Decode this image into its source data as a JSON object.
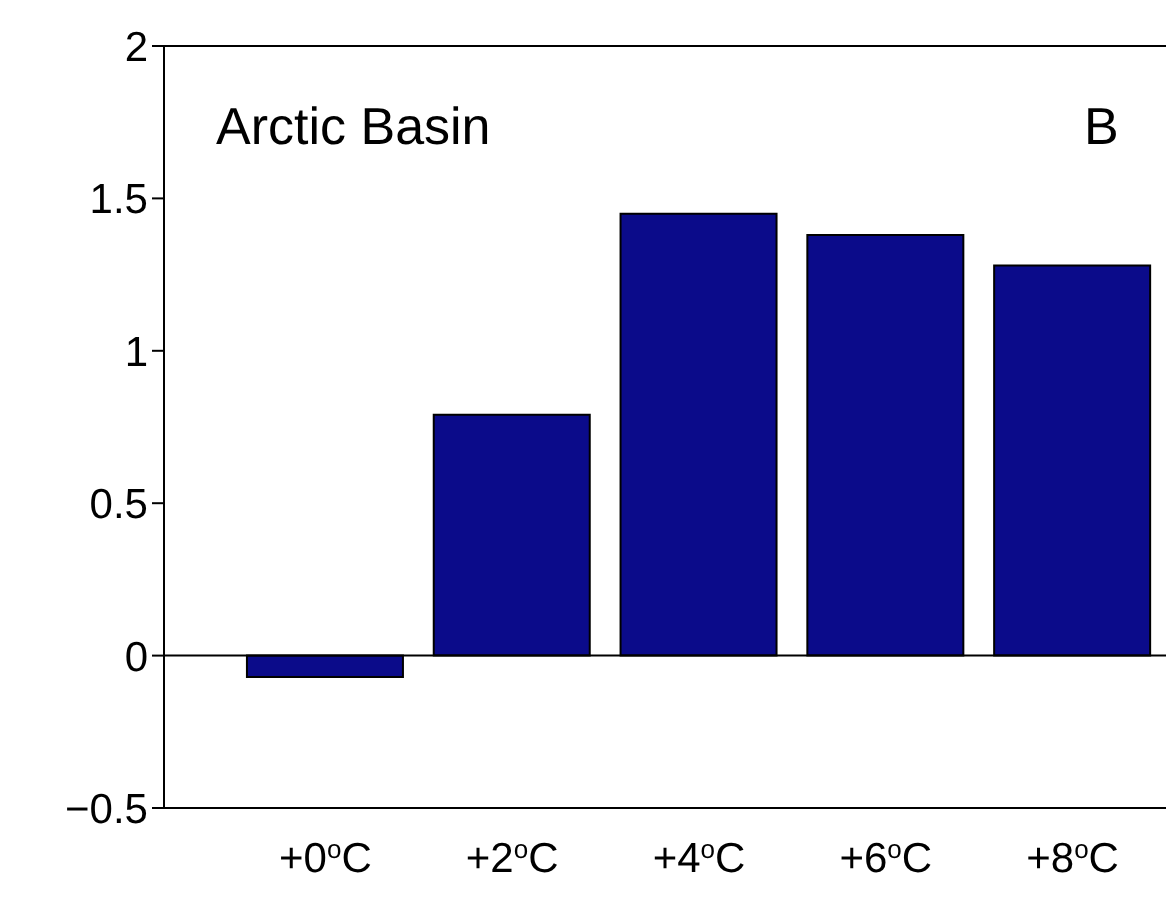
{
  "chart_data": {
    "type": "bar",
    "categories": [
      "+0$^{o}$C",
      "+2$^{o}$C",
      "+4$^{o}$C",
      "+6$^{o}$C",
      "+8$^{o}$C"
    ],
    "values": [
      -0.07,
      0.79,
      1.45,
      1.38,
      1.28
    ],
    "color": "#0b0b8a",
    "ylim": [
      -0.5,
      2
    ],
    "yticks": [
      {
        "value": -0.5,
        "label": "−0.5"
      },
      0,
      0.5,
      1,
      1.5,
      2
    ],
    "annotations": [
      "Arctic Basin",
      "B"
    ]
  }
}
